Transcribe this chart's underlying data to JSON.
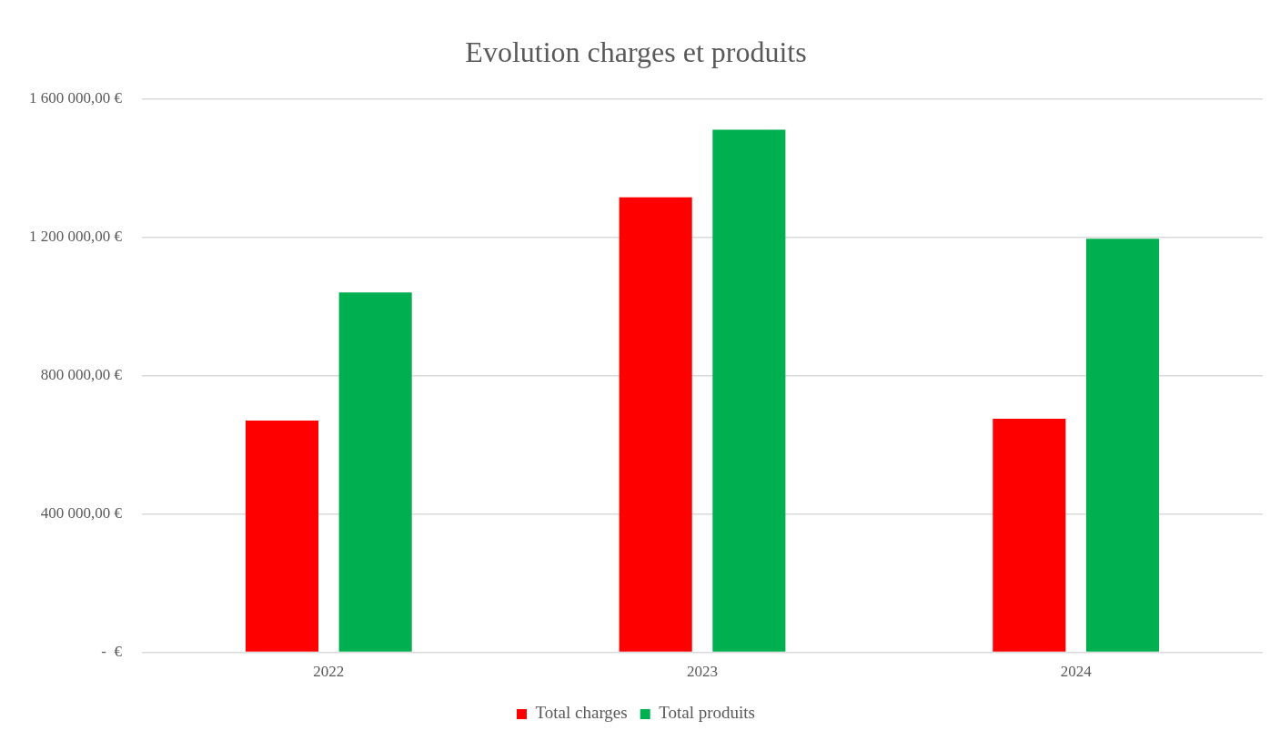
{
  "chart_data": {
    "type": "bar",
    "title": "Evolution charges et produits",
    "categories": [
      "2022",
      "2023",
      "2024"
    ],
    "series": [
      {
        "name": "Total charges",
        "color": "#ff0000",
        "values": [
          670000,
          1315000,
          675000
        ]
      },
      {
        "name": "Total produits",
        "color": "#00b050",
        "values": [
          1040000,
          1510000,
          1195000
        ]
      }
    ],
    "ylim": [
      0,
      1600000
    ],
    "yticks": [
      {
        "value": 0,
        "label": "-  €"
      },
      {
        "value": 400000,
        "label": "400 000,00 €"
      },
      {
        "value": 800000,
        "label": "800 000,00 €"
      },
      {
        "value": 1200000,
        "label": "1 200 000,00 €"
      },
      {
        "value": 1600000,
        "label": "1 600 000,00 €"
      }
    ],
    "grid": "y",
    "legend": "bottom"
  }
}
